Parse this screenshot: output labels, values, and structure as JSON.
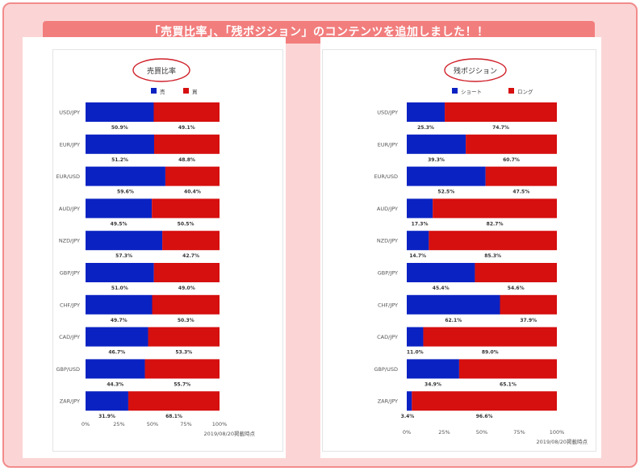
{
  "banner": {
    "text": "「売買比率」、「残ポジション」のコンテンツを追加しました！！"
  },
  "colors": {
    "blue": "#0b22c2",
    "red": "#d60f0f",
    "ring": "#d0202a",
    "banner": "#f27d7d",
    "frame": "#fbd5d5"
  },
  "chart_data": [
    {
      "type": "bar",
      "stacked": true,
      "orientation": "horizontal",
      "title": "売買比率",
      "categories": [
        "USD/JPY",
        "EUR/JPY",
        "EUR/USD",
        "AUD/JPY",
        "NZD/JPY",
        "GBP/JPY",
        "CHF/JPY",
        "CAD/JPY",
        "GBP/USD",
        "ZAR/JPY"
      ],
      "series": [
        {
          "name": "売",
          "color": "#0b22c2",
          "values": [
            50.9,
            51.2,
            59.6,
            49.5,
            57.3,
            51.0,
            49.7,
            46.7,
            44.3,
            31.9
          ],
          "labels": [
            "50.9%",
            "51.2%",
            "59.6%",
            "49.5%",
            "57.3%",
            "51.0%",
            "49.7%",
            "46.7%",
            "44.3%",
            "31.9%"
          ]
        },
        {
          "name": "買",
          "color": "#d60f0f",
          "values": [
            49.1,
            48.8,
            40.4,
            50.5,
            42.7,
            49.0,
            50.3,
            53.3,
            55.7,
            68.1
          ],
          "labels": [
            "49.1%",
            "48.8%",
            "40.4%",
            "50.5%",
            "42.7%",
            "49.0%",
            "50.3%",
            "53.3%",
            "55.7%",
            "68.1%"
          ]
        }
      ],
      "xlim": [
        0,
        100
      ],
      "xticks": [
        "0%",
        "25%",
        "50%",
        "75%",
        "100%"
      ],
      "legend": "top-center",
      "footnote": "2019/08/20掲載時点"
    },
    {
      "type": "bar",
      "stacked": true,
      "orientation": "horizontal",
      "title": "残ポジション",
      "categories": [
        "USD/JPY",
        "EUR/JPY",
        "EUR/USD",
        "AUD/JPY",
        "NZD/JPY",
        "GBP/JPY",
        "CHF/JPY",
        "CAD/JPY",
        "GBP/USD",
        "ZAR/JPY"
      ],
      "series": [
        {
          "name": "ショート",
          "color": "#0b22c2",
          "values": [
            25.3,
            39.3,
            52.5,
            17.3,
            14.7,
            45.4,
            62.1,
            11.0,
            34.9,
            3.4
          ],
          "labels": [
            "25.3%",
            "39.3%",
            "52.5%",
            "17.3%",
            "14.7%",
            "45.4%",
            "62.1%",
            "11.0%",
            "34.9%",
            "3.4%"
          ]
        },
        {
          "name": "ロング",
          "color": "#d60f0f",
          "values": [
            74.7,
            60.7,
            47.5,
            82.7,
            85.3,
            54.6,
            37.9,
            89.0,
            65.1,
            96.6
          ],
          "labels": [
            "74.7%",
            "60.7%",
            "47.5%",
            "82.7%",
            "85.3%",
            "54.6%",
            "37.9%",
            "89.0%",
            "65.1%",
            "96.6%"
          ]
        }
      ],
      "xlim": [
        0,
        100
      ],
      "xticks": [
        "0%",
        "25%",
        "50%",
        "75%",
        "100%"
      ],
      "legend": "top-center",
      "footnote": "2019/08/20掲載時点"
    }
  ]
}
